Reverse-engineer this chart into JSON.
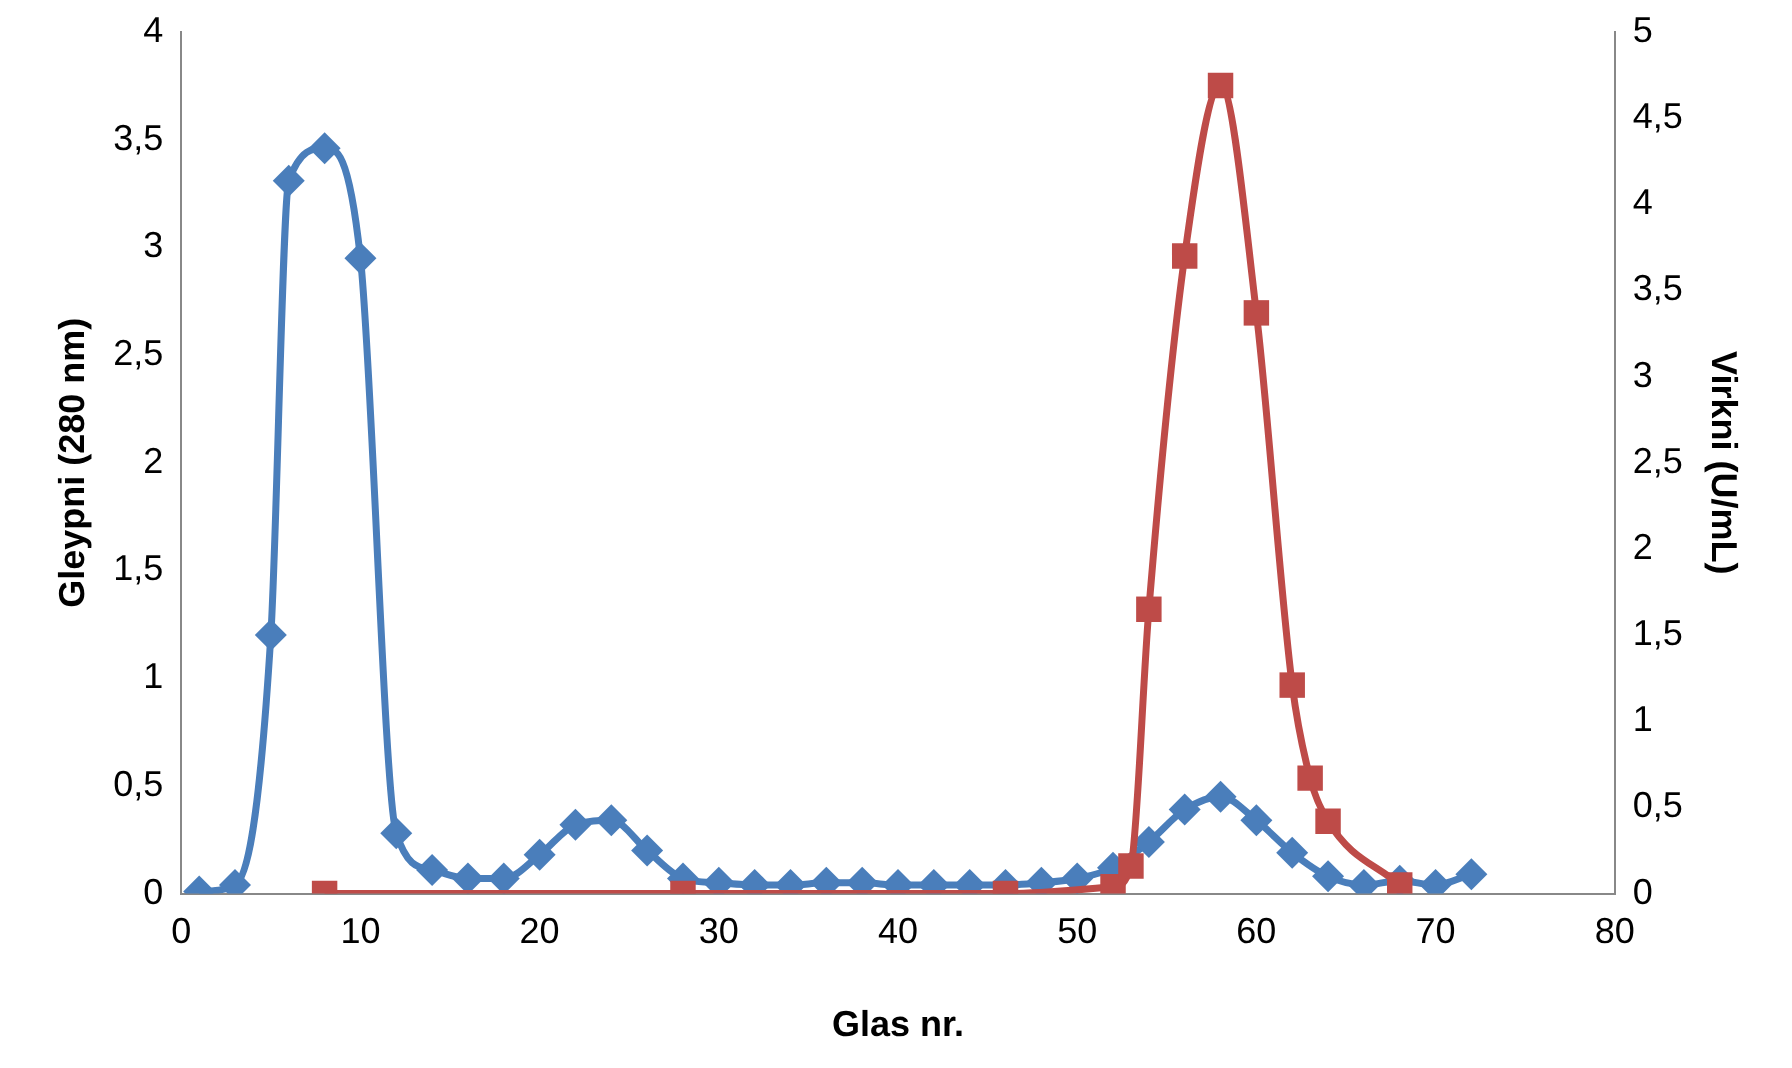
{
  "chart_data": {
    "type": "line",
    "xlabel": "Glas nr.",
    "ylabel": "Gleypni (280 nm)",
    "y2label": "Virkni (U/mL)",
    "xlim": [
      0,
      80
    ],
    "xticks": [
      0,
      10,
      20,
      30,
      40,
      50,
      60,
      70,
      80
    ],
    "ylim": [
      0,
      4
    ],
    "yticks": [
      0,
      {
        "value": 0.5,
        "label": "0,5"
      },
      1,
      {
        "value": 1.5,
        "label": "1,5"
      },
      2,
      {
        "value": 2.5,
        "label": "2,5"
      },
      3,
      {
        "value": 3.5,
        "label": "3,5"
      },
      4
    ],
    "y2lim": [
      0,
      5
    ],
    "y2ticks": [
      0,
      {
        "value": 0.5,
        "label": "0,5"
      },
      1,
      {
        "value": 1.5,
        "label": "1,5"
      },
      2,
      {
        "value": 2.5,
        "label": "2,5"
      },
      3,
      {
        "value": 3.5,
        "label": "3,5"
      },
      4,
      {
        "value": 4.5,
        "label": "4,5"
      },
      5
    ],
    "grid": false,
    "legend": false,
    "line_style": "solid",
    "series": [
      {
        "color": "#4a7ebb",
        "marker": "diamond",
        "x": [
          1,
          3,
          5,
          6,
          8,
          10,
          12,
          14,
          16,
          18,
          20,
          22,
          24,
          26,
          28,
          30,
          32,
          34,
          36,
          38,
          40,
          42,
          44,
          46,
          48,
          50,
          52,
          54,
          56,
          58,
          60,
          62,
          64,
          66,
          68,
          70,
          72
        ],
        "values": [
          0.01,
          0.04,
          1.2,
          3.31,
          3.46,
          2.95,
          0.28,
          0.11,
          0.07,
          0.07,
          0.18,
          0.32,
          0.34,
          0.2,
          0.07,
          0.05,
          0.04,
          0.04,
          0.05,
          0.05,
          0.04,
          0.04,
          0.04,
          0.04,
          0.05,
          0.07,
          0.12,
          0.24,
          0.39,
          0.45,
          0.34,
          0.19,
          0.08,
          0.04,
          0.06,
          0.04,
          0.09
        ]
      },
      {
        "color": "#be4b48",
        "marker": "square",
        "axis": "y2",
        "x": [
          8,
          28,
          46,
          52,
          53,
          54,
          56,
          58,
          60,
          62,
          63,
          64,
          68
        ],
        "values": [
          0,
          0,
          0,
          0.04,
          0.16,
          1.65,
          3.7,
          4.69,
          3.37,
          1.21,
          0.67,
          0.42,
          0.05
        ]
      }
    ]
  }
}
